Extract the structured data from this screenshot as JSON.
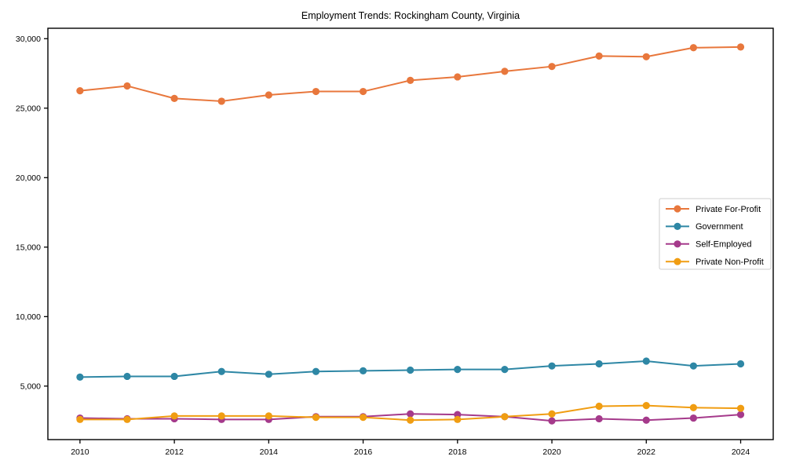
{
  "figure": {
    "title": "Employment Trends: Rockingham County, Virginia",
    "background_color": "#ffffff"
  },
  "chart_data": {
    "type": "line",
    "title": "Employment Trends: Rockingham County, Virginia",
    "xlabel": "",
    "ylabel": "",
    "grid": false,
    "x": [
      2010,
      2011,
      2012,
      2013,
      2014,
      2015,
      2016,
      2017,
      2018,
      2019,
      2020,
      2021,
      2022,
      2023,
      2024
    ],
    "xtick_labels": [
      "2010",
      "2012",
      "2014",
      "2016",
      "2018",
      "2020",
      "2022",
      "2024"
    ],
    "xtick_values": [
      2010,
      2012,
      2014,
      2016,
      2018,
      2020,
      2022,
      2024
    ],
    "ytick_values": [
      5000,
      10000,
      15000,
      20000,
      25000,
      30000
    ],
    "ytick_labels": [
      "5,000",
      "10,000",
      "15,000",
      "20,000",
      "25,000",
      "30,000"
    ],
    "xlim": [
      2009.32,
      2024.69
    ],
    "ylim": [
      1150,
      30750
    ],
    "legend": {
      "position": "center-right",
      "border_color": "#cccccc",
      "background": "#ffffff"
    },
    "series": [
      {
        "name": "Private For-Profit",
        "color": "#e8773c",
        "values": [
          26250,
          26600,
          25700,
          25500,
          25950,
          26200,
          26200,
          27000,
          27250,
          27650,
          28000,
          28750,
          28700,
          29350,
          29400
        ]
      },
      {
        "name": "Government",
        "color": "#2e87a5",
        "values": [
          5650,
          5700,
          5700,
          6050,
          5850,
          6050,
          6100,
          6150,
          6200,
          6200,
          6450,
          6600,
          6800,
          6450,
          6600
        ]
      },
      {
        "name": "Self-Employed",
        "color": "#a53a8b",
        "values": [
          2700,
          2650,
          2650,
          2600,
          2600,
          2800,
          2800,
          3000,
          2950,
          2800,
          2500,
          2650,
          2550,
          2700,
          2950
        ]
      },
      {
        "name": "Private Non-Profit",
        "color": "#f09d12",
        "values": [
          2600,
          2600,
          2850,
          2850,
          2850,
          2750,
          2750,
          2550,
          2600,
          2800,
          3000,
          3550,
          3600,
          3450,
          3400
        ]
      }
    ]
  }
}
